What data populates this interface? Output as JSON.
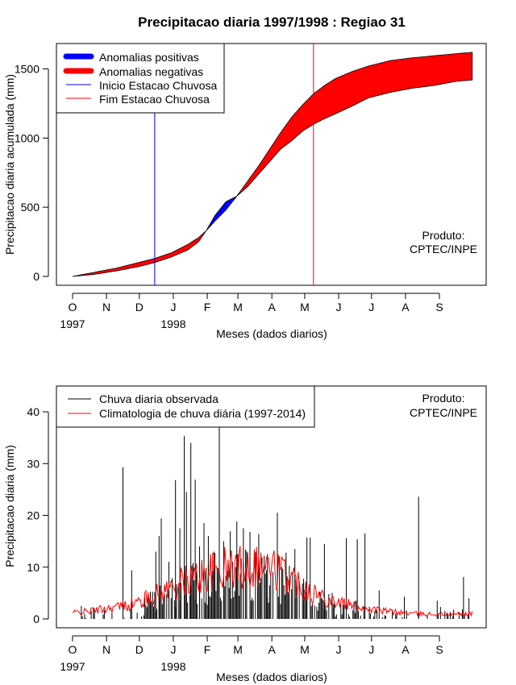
{
  "title": "Precipitacao diaria 1997/1998 : Regiao 31",
  "months": [
    "O",
    "N",
    "D",
    "J",
    "F",
    "M",
    "A",
    "M",
    "J",
    "J",
    "A",
    "S"
  ],
  "years": [
    "1997",
    "1998"
  ],
  "xlabel": "Meses (dados diarios)",
  "product_line1": "Produto:",
  "product_line2": "CPTEC/INPE",
  "colors": {
    "positive": "#0000ff",
    "negative": "#ff0000",
    "observed": "#000000",
    "climatology": "#ff0000",
    "start": "#0000ff",
    "end": "#ff0000"
  },
  "chart_data": [
    {
      "type": "area",
      "ylabel": "Precipitacao diaria acumulada (mm)",
      "ylim": [
        0,
        1650
      ],
      "yticks": [
        0,
        500,
        1000,
        1500
      ],
      "xlim_days": [
        -7,
        373
      ],
      "month_starts_days": [
        0,
        31,
        61,
        92,
        123,
        151,
        182,
        212,
        243,
        273,
        304,
        335
      ],
      "legend": [
        "Anomalias positivas",
        "Anomalias negativas",
        "Inicio Estacao Chuvosa",
        "Fim Estacao Chuvosa"
      ],
      "rainy_season_start_day": 75,
      "rainy_season_end_day": 220,
      "observed_cumulative": {
        "x_days": [
          0,
          20,
          40,
          60,
          75,
          90,
          105,
          115,
          122,
          130,
          140,
          150,
          160,
          170,
          180,
          190,
          200,
          210,
          220,
          230,
          240,
          255,
          270,
          290,
          310,
          330,
          350,
          365
        ],
        "y": [
          0,
          15,
          40,
          70,
          100,
          140,
          190,
          250,
          330,
          440,
          540,
          580,
          650,
          740,
          830,
          920,
          980,
          1050,
          1100,
          1140,
          1175,
          1230,
          1290,
          1330,
          1360,
          1380,
          1410,
          1420
        ]
      },
      "climatology_cumulative": {
        "x_days": [
          0,
          20,
          40,
          60,
          75,
          90,
          105,
          115,
          122,
          130,
          140,
          150,
          160,
          170,
          180,
          190,
          200,
          210,
          220,
          230,
          240,
          255,
          270,
          290,
          310,
          330,
          350,
          365
        ],
        "y": [
          0,
          30,
          60,
          100,
          130,
          170,
          230,
          280,
          330,
          400,
          480,
          580,
          690,
          800,
          920,
          1040,
          1150,
          1240,
          1320,
          1380,
          1430,
          1480,
          1520,
          1560,
          1580,
          1595,
          1610,
          1620
        ]
      }
    },
    {
      "type": "bar",
      "ylabel": "Precipitacao diaria (mm)",
      "ylim": [
        0,
        45
      ],
      "yticks": [
        0,
        10,
        20,
        30,
        40
      ],
      "xlim_days": [
        -7,
        373
      ],
      "legend": [
        "Chuva diaria observada",
        "Climatologia de chuva diária (1997-2014)"
      ],
      "observed_peaks": [
        {
          "day": 46,
          "value": 29.3
        },
        {
          "day": 54,
          "value": 9.4
        },
        {
          "day": 71,
          "value": 4.5
        },
        {
          "day": 76,
          "value": 13
        },
        {
          "day": 79,
          "value": 16
        },
        {
          "day": 81,
          "value": 19.4
        },
        {
          "day": 88,
          "value": 11
        },
        {
          "day": 94,
          "value": 26.8
        },
        {
          "day": 98,
          "value": 17.5
        },
        {
          "day": 102,
          "value": 35.3
        },
        {
          "day": 104,
          "value": 24.5
        },
        {
          "day": 108,
          "value": 34
        },
        {
          "day": 112,
          "value": 26.9
        },
        {
          "day": 116,
          "value": 14
        },
        {
          "day": 120,
          "value": 18.5
        },
        {
          "day": 124,
          "value": 16
        },
        {
          "day": 129,
          "value": 13
        },
        {
          "day": 134,
          "value": 40
        },
        {
          "day": 138,
          "value": 15
        },
        {
          "day": 144,
          "value": 16.9
        },
        {
          "day": 150,
          "value": 18.8
        },
        {
          "day": 156,
          "value": 17.5
        },
        {
          "day": 162,
          "value": 16.8
        },
        {
          "day": 170,
          "value": 16.4
        },
        {
          "day": 178,
          "value": 12.5
        },
        {
          "day": 187,
          "value": 20.5
        },
        {
          "day": 195,
          "value": 12.8
        },
        {
          "day": 203,
          "value": 13.5
        },
        {
          "day": 214,
          "value": 15.7
        },
        {
          "day": 217,
          "value": 15.7
        },
        {
          "day": 230,
          "value": 14.5
        },
        {
          "day": 250,
          "value": 15.6
        },
        {
          "day": 260,
          "value": 15.4
        },
        {
          "day": 267,
          "value": 16.5
        },
        {
          "day": 280,
          "value": 5.5
        },
        {
          "day": 303,
          "value": 4.3
        },
        {
          "day": 316,
          "value": 23.6
        },
        {
          "day": 333,
          "value": 3.5
        },
        {
          "day": 345,
          "value": 1.2
        },
        {
          "day": 357,
          "value": 8.1
        },
        {
          "day": 362,
          "value": 4
        }
      ],
      "climatology_curve": {
        "x_days": [
          0,
          15,
          30,
          45,
          60,
          75,
          90,
          105,
          120,
          135,
          150,
          165,
          180,
          195,
          210,
          225,
          240,
          255,
          270,
          285,
          300,
          315,
          330,
          345,
          365
        ],
        "y": [
          1.2,
          1.5,
          2.0,
          2.5,
          3.2,
          4.5,
          6.0,
          7.5,
          8.5,
          9.5,
          10.0,
          10.5,
          10.0,
          8.5,
          6.5,
          4.5,
          3.5,
          2.5,
          2.0,
          1.5,
          1.2,
          1.0,
          0.9,
          0.9,
          1.0
        ]
      }
    }
  ]
}
